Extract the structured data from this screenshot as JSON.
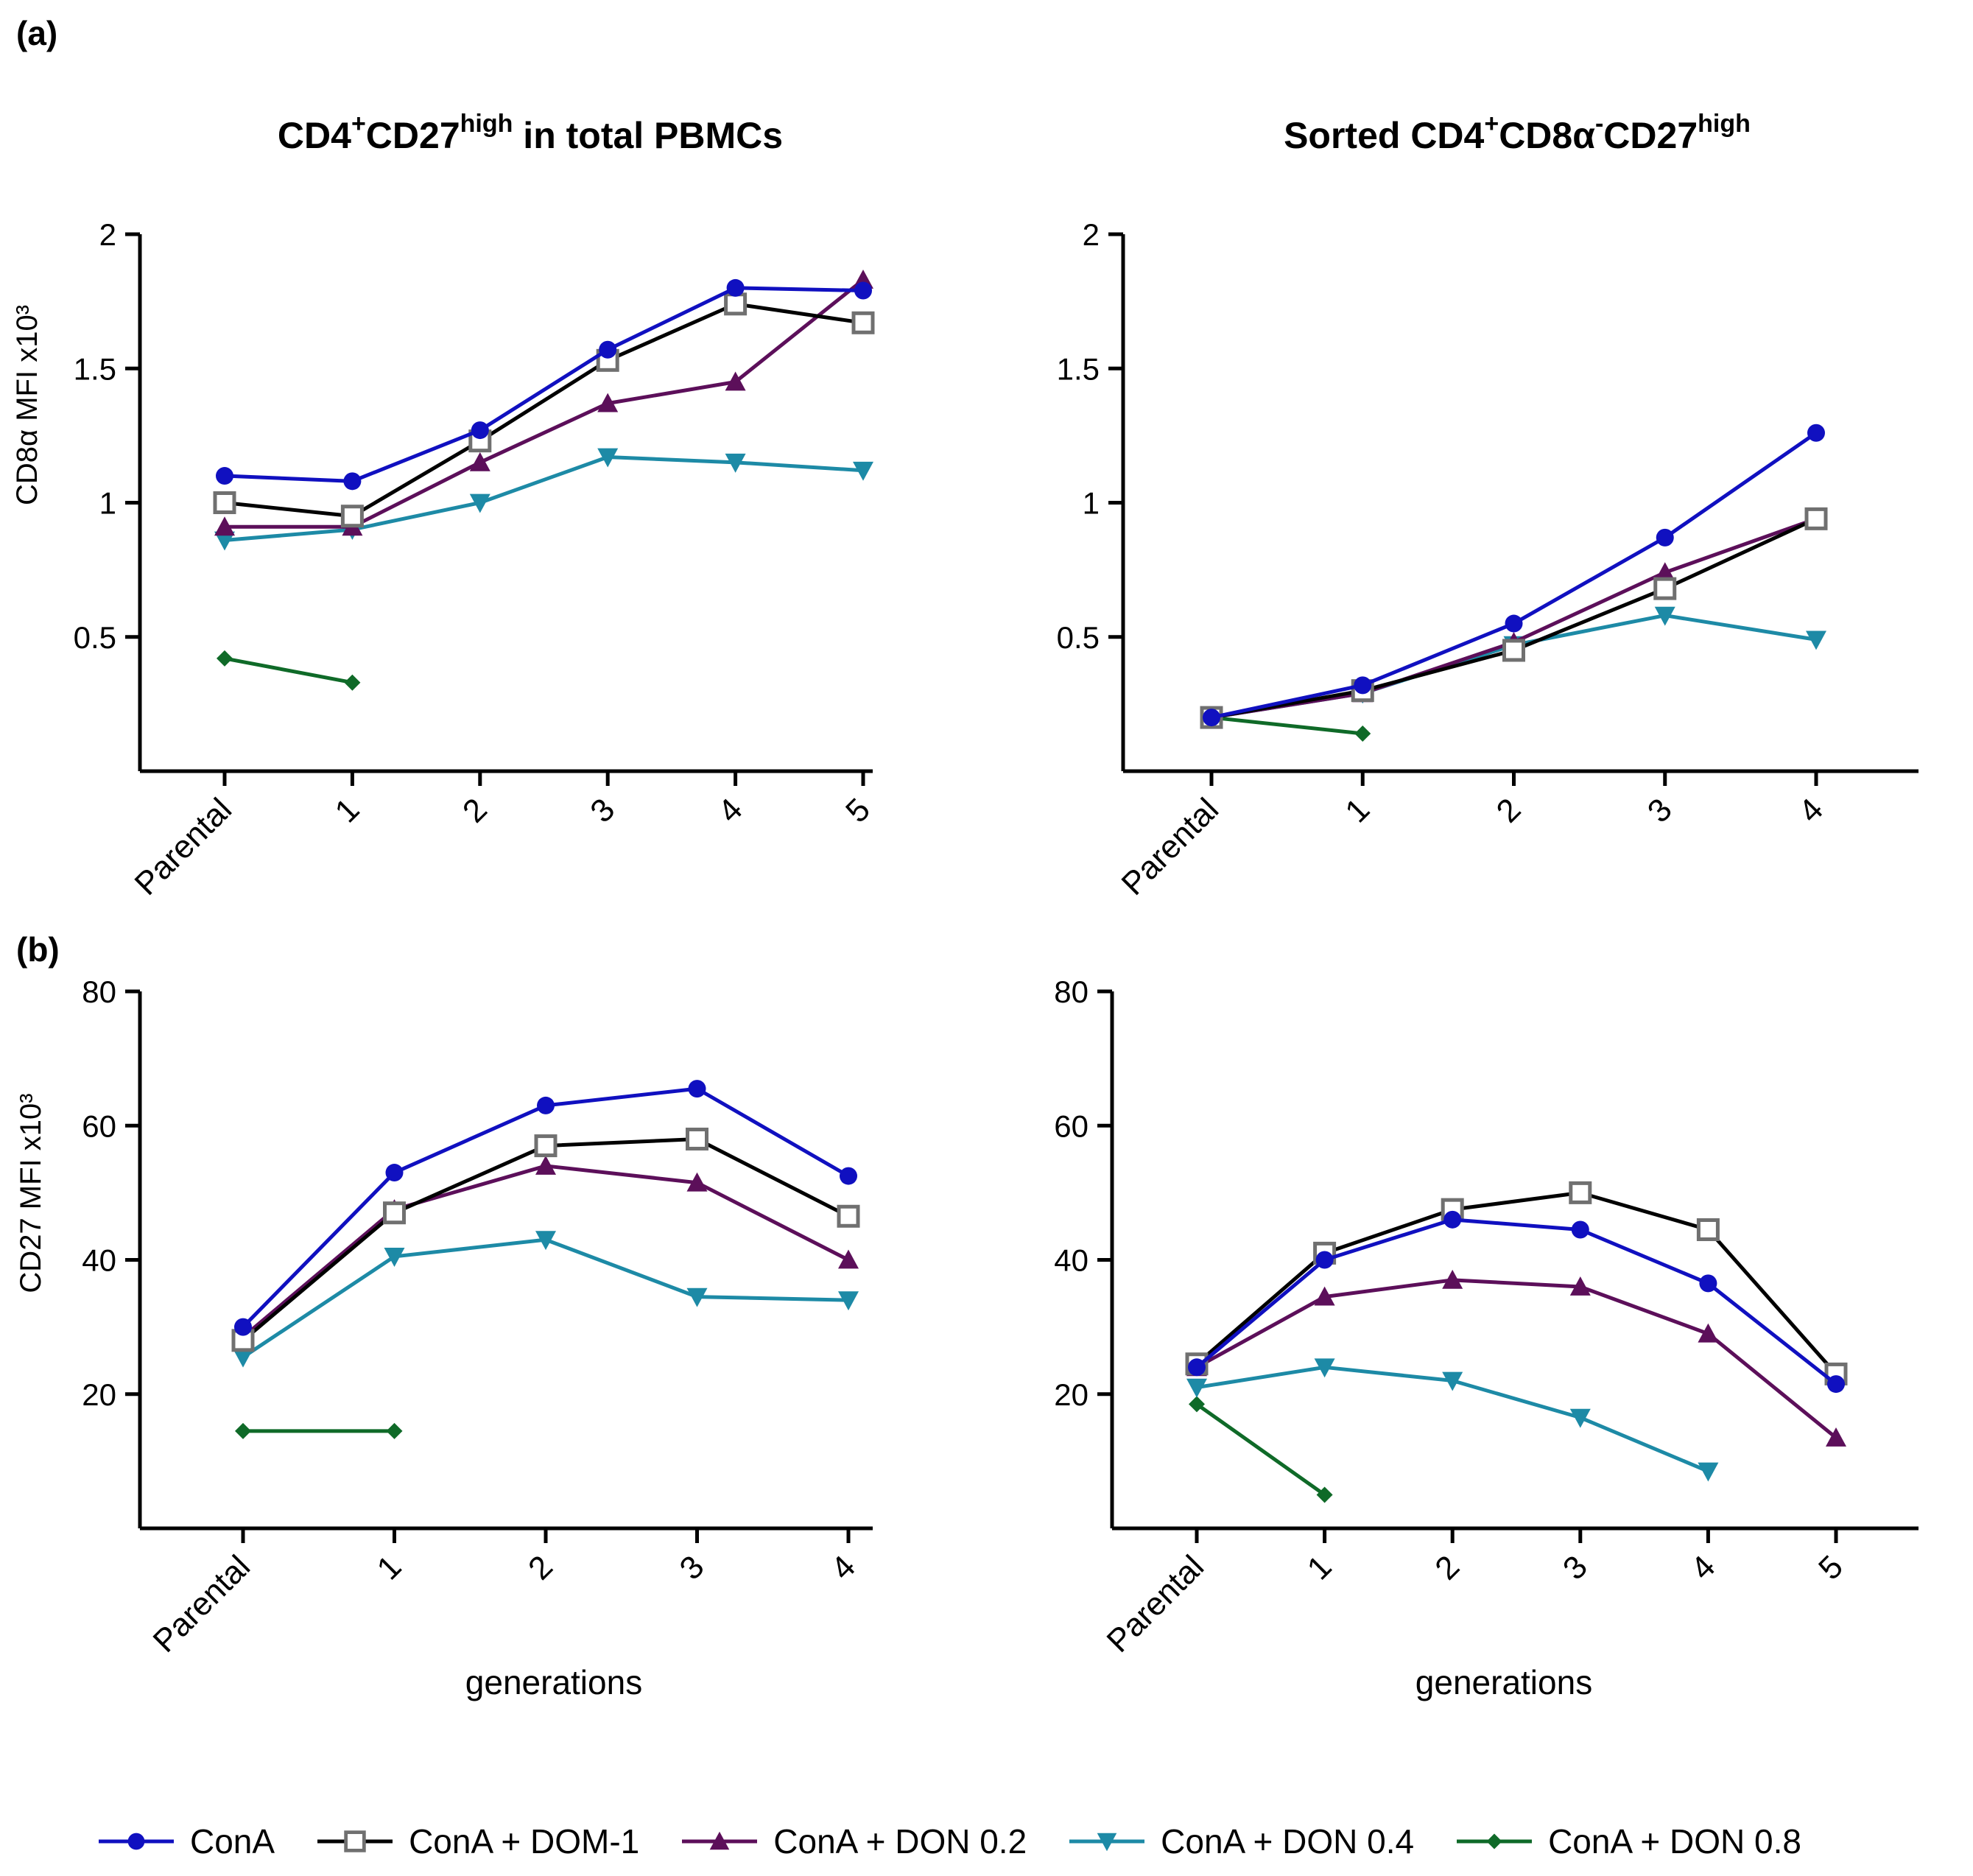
{
  "panel_labels": [
    "(a)",
    "(b)"
  ],
  "titles": {
    "left": {
      "p1": "CD4",
      "s1": "+",
      "p2": "CD27",
      "s2": "high",
      "p3": " in total PBMCs"
    },
    "right": {
      "p1": "Sorted CD4",
      "s1": "+",
      "p2": "CD8α",
      "s2": "-",
      "p3": "CD27",
      "s3": "high"
    }
  },
  "colors": {
    "ConA": "#1010c0",
    "ConA + DOM-1": "#000000",
    "DOM-1 marker": "#707070",
    "ConA + DON 0.2": "#5c0f5a",
    "ConA + DON 0.4": "#1d8aa6",
    "ConA + DON 0.8": "#0f6a28"
  },
  "legend": [
    {
      "name": "ConA",
      "marker": "circle"
    },
    {
      "name": "ConA + DOM-1",
      "marker": "square-open"
    },
    {
      "name": "ConA + DON 0.2",
      "marker": "triangle-up"
    },
    {
      "name": "ConA + DON 0.4",
      "marker": "triangle-down"
    },
    {
      "name": "ConA + DON 0.8",
      "marker": "diamond"
    }
  ],
  "chart_data": [
    {
      "id": "a-left",
      "type": "line",
      "ylabel": "CD8α MFI x10³",
      "xlabel": "",
      "ylim": [
        0,
        2
      ],
      "yticks": [
        0.5,
        1,
        1.5,
        2
      ],
      "ytick_labels": [
        "0.5",
        "1",
        "1.5",
        "2"
      ],
      "categories": [
        "Parental",
        "1",
        "2",
        "3",
        "4",
        "5"
      ],
      "series": [
        {
          "name": "ConA",
          "values": [
            1.1,
            1.08,
            1.27,
            1.57,
            1.8,
            1.79
          ]
        },
        {
          "name": "ConA + DOM-1",
          "values": [
            1.0,
            0.95,
            1.23,
            1.53,
            1.74,
            1.67
          ]
        },
        {
          "name": "ConA + DON 0.2",
          "values": [
            0.91,
            0.91,
            1.15,
            1.37,
            1.45,
            1.83
          ]
        },
        {
          "name": "ConA + DON 0.4",
          "values": [
            0.86,
            0.9,
            1.0,
            1.17,
            1.15,
            1.12
          ]
        },
        {
          "name": "ConA + DON 0.8",
          "values": [
            0.42,
            0.33,
            null,
            null,
            null,
            null
          ]
        }
      ]
    },
    {
      "id": "a-right",
      "type": "line",
      "ylabel": "",
      "xlabel": "",
      "ylim": [
        0,
        2
      ],
      "yticks": [
        0.5,
        1,
        1.5,
        2
      ],
      "ytick_labels": [
        "0.5",
        "1",
        "1.5",
        "2"
      ],
      "categories": [
        "Parental",
        "1",
        "2",
        "3",
        "4"
      ],
      "series": [
        {
          "name": "ConA",
          "values": [
            0.2,
            0.32,
            0.55,
            0.87,
            1.26
          ]
        },
        {
          "name": "ConA + DOM-1",
          "values": [
            0.2,
            0.3,
            0.45,
            0.68,
            0.94
          ]
        },
        {
          "name": "ConA + DON 0.2",
          "values": [
            0.2,
            0.29,
            0.48,
            0.74,
            0.94
          ]
        },
        {
          "name": "ConA + DON 0.4",
          "values": [
            0.2,
            0.29,
            0.47,
            0.58,
            0.49
          ]
        },
        {
          "name": "ConA + DON 0.8",
          "values": [
            0.2,
            0.14,
            null,
            null,
            null
          ]
        }
      ]
    },
    {
      "id": "b-left",
      "type": "line",
      "ylabel": "CD27 MFI x10³",
      "xlabel": "generations",
      "ylim": [
        0,
        80
      ],
      "yticks": [
        20,
        40,
        60,
        80
      ],
      "ytick_labels": [
        "20",
        "40",
        "60",
        "80"
      ],
      "categories": [
        "Parental",
        "1",
        "2",
        "3",
        "4"
      ],
      "series": [
        {
          "name": "ConA",
          "values": [
            30,
            53,
            63,
            65.5,
            52.5
          ]
        },
        {
          "name": "ConA + DOM-1",
          "values": [
            28,
            47,
            57,
            58,
            46.5
          ]
        },
        {
          "name": "ConA + DON 0.2",
          "values": [
            28.5,
            47.5,
            54,
            51.5,
            40
          ]
        },
        {
          "name": "ConA + DON 0.4",
          "values": [
            25.5,
            40.5,
            43,
            34.5,
            34
          ]
        },
        {
          "name": "ConA + DON 0.8",
          "values": [
            14.5,
            14.5,
            null,
            null,
            null
          ]
        }
      ]
    },
    {
      "id": "b-right",
      "type": "line",
      "ylabel": "",
      "xlabel": "generations",
      "ylim": [
        0,
        80
      ],
      "yticks": [
        20,
        40,
        60,
        80
      ],
      "ytick_labels": [
        "20",
        "40",
        "60",
        "80"
      ],
      "categories": [
        "Parental",
        "1",
        "2",
        "3",
        "4",
        "5"
      ],
      "series": [
        {
          "name": "ConA",
          "values": [
            24,
            40,
            46,
            44.5,
            36.5,
            21.5
          ]
        },
        {
          "name": "ConA + DOM-1",
          "values": [
            24.5,
            41,
            47.5,
            50,
            44.5,
            23
          ]
        },
        {
          "name": "ConA + DON 0.2",
          "values": [
            24,
            34.5,
            37,
            36,
            29,
            13.5
          ]
        },
        {
          "name": "ConA + DON 0.4",
          "values": [
            21,
            24,
            22,
            16.5,
            8.5,
            null
          ]
        },
        {
          "name": "ConA + DON 0.8",
          "values": [
            18.5,
            5,
            null,
            null,
            null,
            null
          ]
        }
      ]
    }
  ]
}
